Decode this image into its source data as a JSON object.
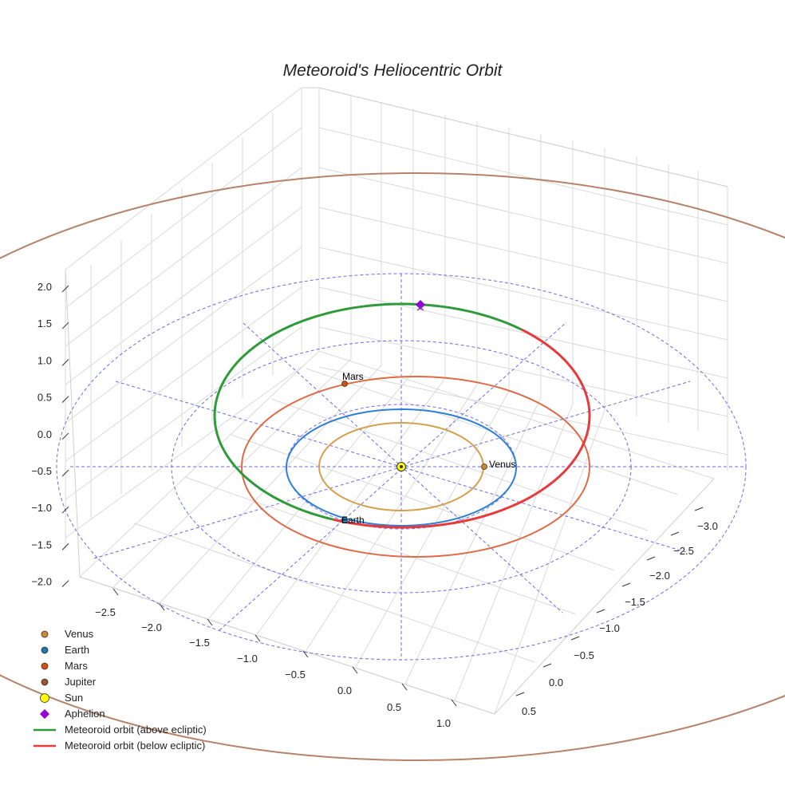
{
  "chart_data": {
    "type": "line",
    "projection": "3d",
    "title": "Meteoroid's Heliocentric Orbit",
    "xlabel": "",
    "ylabel": "",
    "zlabel": "",
    "grid": true,
    "legend_position": "bottom-left",
    "axes": {
      "x_ticks": [
        "−2.5",
        "−2.0",
        "−1.5",
        "−1.0",
        "−0.5",
        "0.0",
        "0.5",
        "1.0"
      ],
      "y_ticks": [
        "−3.0",
        "−2.5",
        "−2.0",
        "−1.5",
        "−1.0",
        "−0.5",
        "0.0",
        "0.5"
      ],
      "z_ticks": [
        "2.0",
        "1.5",
        "1.0",
        "0.5",
        "0.0",
        "−0.5",
        "−1.0",
        "−1.5",
        "−2.0"
      ],
      "xlim": [
        -2.8,
        1.2
      ],
      "ylim": [
        -3.2,
        0.7
      ],
      "zlim": [
        -2.0,
        2.0
      ]
    },
    "series": [
      {
        "name": "Venus",
        "kind": "planet",
        "orbit_radius_au": 0.72,
        "color": "#d4a04e",
        "marker_color": "#d2872c"
      },
      {
        "name": "Earth",
        "kind": "planet",
        "orbit_radius_au": 1.0,
        "color": "#2e7fd8",
        "marker_color": "#1f77b4"
      },
      {
        "name": "Mars",
        "kind": "planet",
        "orbit_radius_au": 1.52,
        "color": "#e06a45",
        "marker_color": "#d4500f"
      },
      {
        "name": "Jupiter",
        "kind": "planet",
        "orbit_radius_au": 5.2,
        "color": "#b5836a",
        "marker_color": "#a0522d"
      },
      {
        "name": "Sun",
        "kind": "star",
        "x": 0,
        "y": 0,
        "z": 0,
        "color": "#ffff00"
      },
      {
        "name": "Aphelion",
        "kind": "point",
        "color": "#9400d3"
      },
      {
        "name": "Meteoroid orbit (above ecliptic)",
        "kind": "orbit",
        "color": "#2e9a3a"
      },
      {
        "name": "Meteoroid orbit (below ecliptic)",
        "kind": "orbit",
        "color": "#e8393b"
      }
    ],
    "point_labels": {
      "venus": "Venus",
      "earth": "Earth",
      "mars": "Mars"
    },
    "reference_rings_color": "#6b6bea"
  }
}
